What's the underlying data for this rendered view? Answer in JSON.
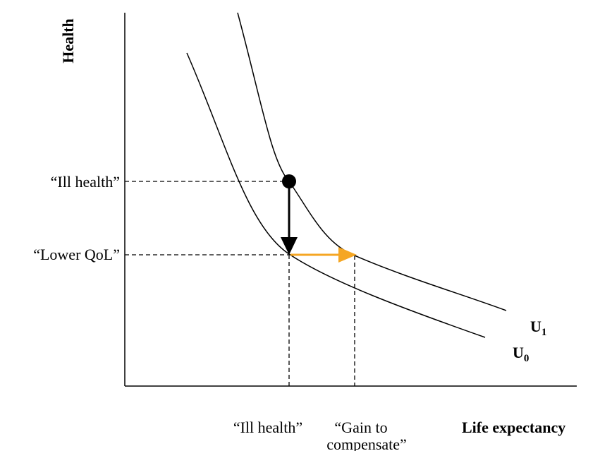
{
  "axes": {
    "y_label": "Health",
    "x_label": "Life expectancy"
  },
  "y_levels": [
    "“Ill health”",
    "“Lower QoL”"
  ],
  "x_levels": {
    "ill_health": "“Ill health”",
    "gain": [
      "“Gain to",
      "compensate”"
    ]
  },
  "curves": [
    {
      "name": "U",
      "sub": "1"
    },
    {
      "name": "U",
      "sub": "0"
    }
  ]
}
